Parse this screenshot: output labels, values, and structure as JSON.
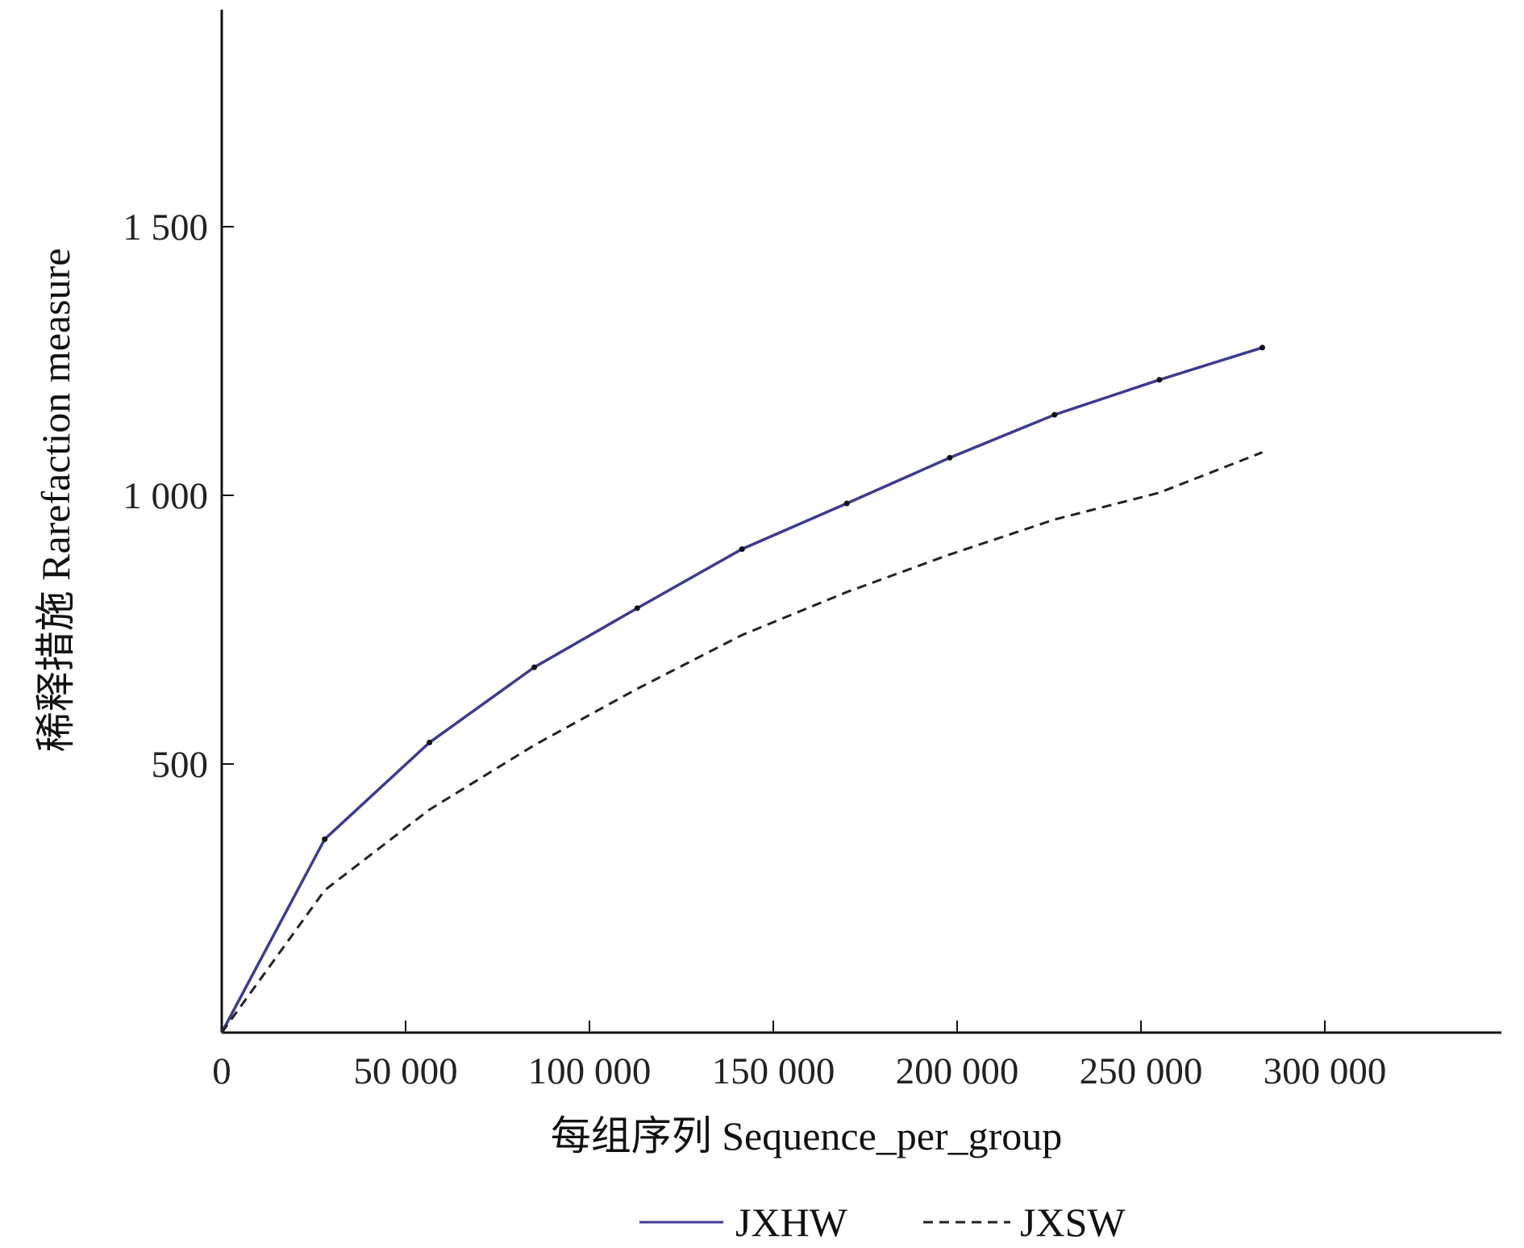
{
  "chart_data": {
    "type": "line",
    "title": "",
    "xlabel": "每组序列 Sequence_per_group",
    "ylabel": "稀释措施 Rarefaction measure",
    "xlim": [
      0,
      350000
    ],
    "ylim": [
      0,
      1900
    ],
    "x_ticks": [
      {
        "value": 0,
        "label": "0"
      },
      {
        "value": 50000,
        "label": "50 000"
      },
      {
        "value": 100000,
        "label": "100 000"
      },
      {
        "value": 150000,
        "label": "150 000"
      },
      {
        "value": 200000,
        "label": "200 000"
      },
      {
        "value": 250000,
        "label": "250 000"
      },
      {
        "value": 300000,
        "label": "300 000"
      }
    ],
    "y_ticks": [
      {
        "value": 500,
        "label": "500"
      },
      {
        "value": 1000,
        "label": "1 000"
      },
      {
        "value": 1500,
        "label": "1 500"
      }
    ],
    "grid": false,
    "legend_position": "bottom-center",
    "series": [
      {
        "name": "JXHW",
        "color": "#3b3b8f",
        "style": "solid",
        "markers": true,
        "points": [
          [
            0,
            0
          ],
          [
            28000,
            360
          ],
          [
            56500,
            540
          ],
          [
            85000,
            680
          ],
          [
            113000,
            790
          ],
          [
            141500,
            900
          ],
          [
            170000,
            985
          ],
          [
            198000,
            1070
          ],
          [
            226500,
            1150
          ],
          [
            255000,
            1215
          ],
          [
            283000,
            1275
          ]
        ]
      },
      {
        "name": "JXSW",
        "color": "#222222",
        "style": "dashed",
        "markers": false,
        "points": [
          [
            0,
            0
          ],
          [
            28000,
            265
          ],
          [
            56500,
            415
          ],
          [
            85000,
            535
          ],
          [
            113000,
            640
          ],
          [
            141500,
            740
          ],
          [
            170000,
            820
          ],
          [
            198000,
            890
          ],
          [
            226500,
            955
          ],
          [
            255000,
            1005
          ],
          [
            283000,
            1080
          ]
        ]
      }
    ]
  }
}
